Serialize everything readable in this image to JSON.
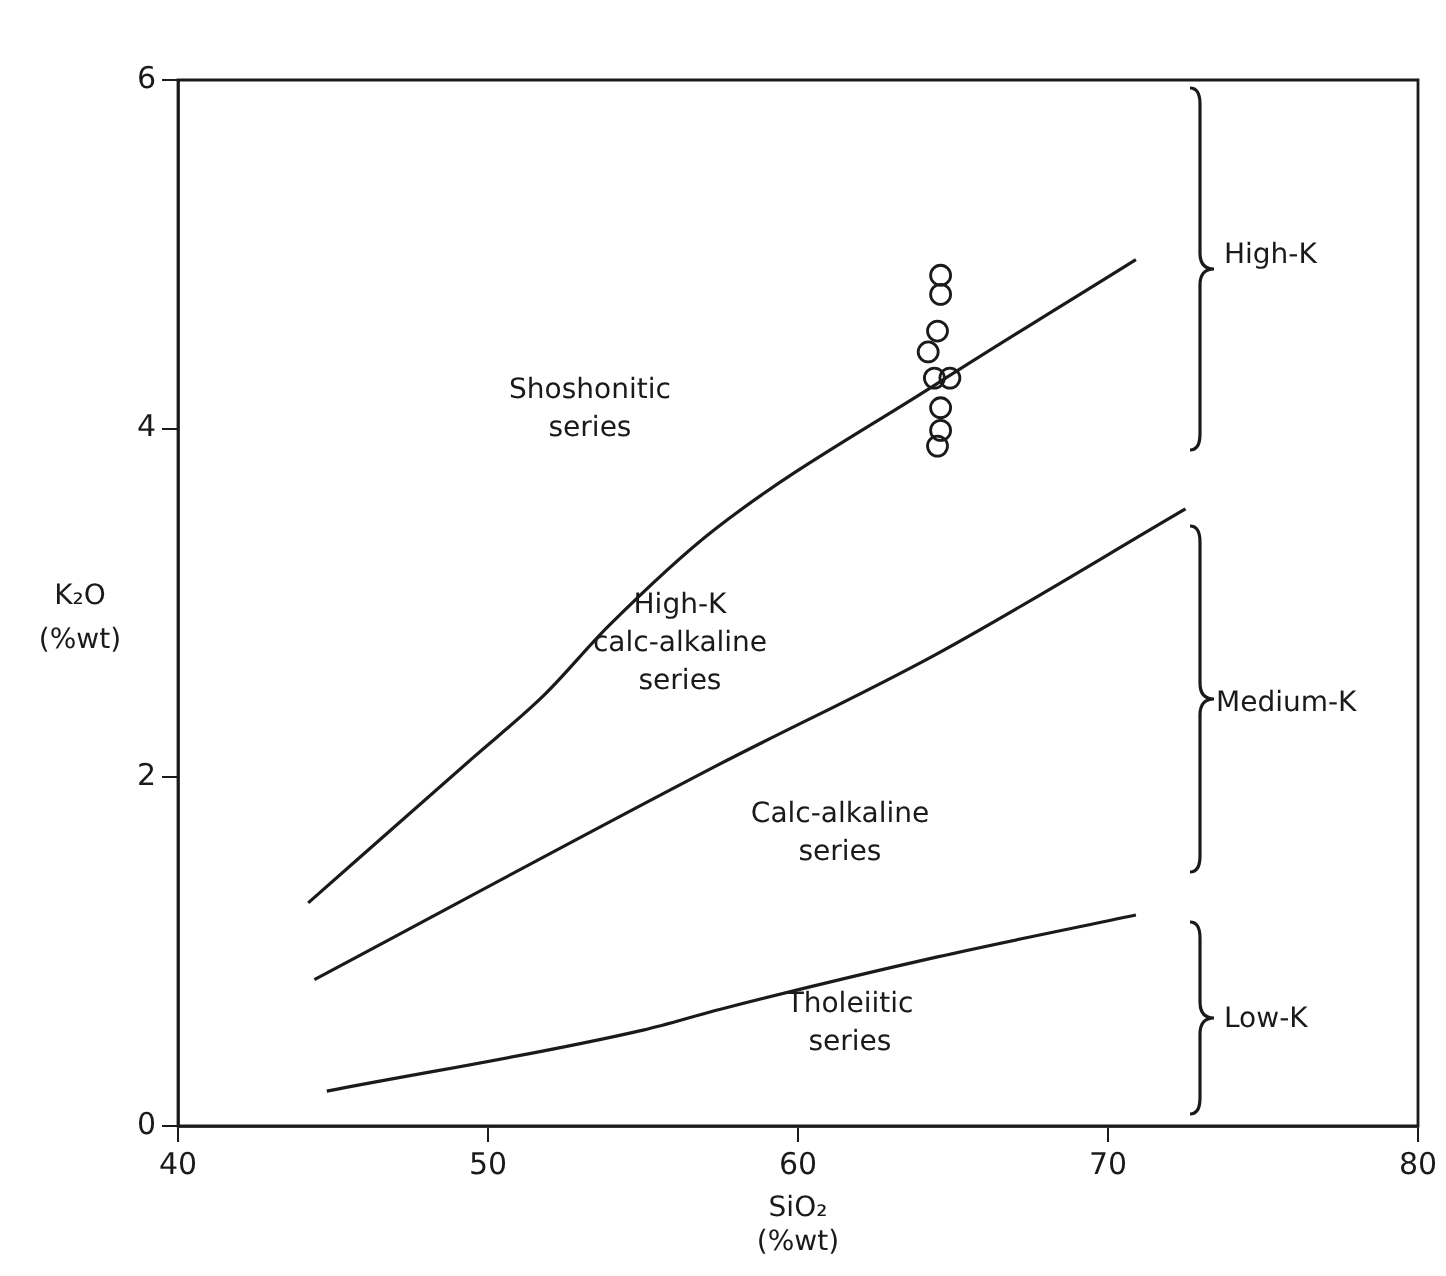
{
  "chart_data": {
    "type": "scatter",
    "xlabel": "SiO₂\n(%wt)",
    "ylabel": "K₂O\n(%wt)",
    "xlim": [
      40,
      80
    ],
    "xticks": [
      40,
      50,
      60,
      70,
      80
    ],
    "ylim": [
      0,
      6
    ],
    "yticks": [
      0,
      2,
      4,
      6
    ],
    "grid": false,
    "legend": false,
    "series": [
      {
        "type": "line",
        "color": "#1a1a1a",
        "marker": "none",
        "x": [
          44.2,
          49.5,
          51.8,
          53.9,
          57.3,
          64.5,
          70.9
        ],
        "values": [
          1.28,
          2.11,
          2.47,
          2.87,
          3.42,
          4.26,
          4.97
        ]
      },
      {
        "type": "line",
        "color": "#1a1a1a",
        "marker": "none",
        "x": [
          44.4,
          57.3,
          64.5,
          72.5
        ],
        "values": [
          0.84,
          2.06,
          2.71,
          3.54
        ]
      },
      {
        "type": "line",
        "color": "#1a1a1a",
        "marker": "none",
        "x": [
          44.8,
          55.0,
          57.5,
          64.5,
          70.9
        ],
        "values": [
          0.2,
          0.55,
          0.67,
          0.97,
          1.21
        ]
      },
      {
        "type": "scatter",
        "color": "#1a1a1a",
        "marker": "circle",
        "x": [
          64.6,
          64.6,
          64.5,
          64.2,
          64.4,
          64.9,
          64.6,
          64.6,
          64.5
        ],
        "values": [
          4.88,
          4.77,
          4.56,
          4.44,
          4.29,
          4.29,
          4.12,
          3.99,
          3.9
        ]
      }
    ],
    "annotations": [
      "Shoshonitic\nseries",
      "High-K\ncalc-alkaline\nseries",
      "Calc-alkaline\nseries",
      "Tholeiitic\nseries",
      "High-K",
      "Medium-K",
      "Low-K"
    ]
  }
}
